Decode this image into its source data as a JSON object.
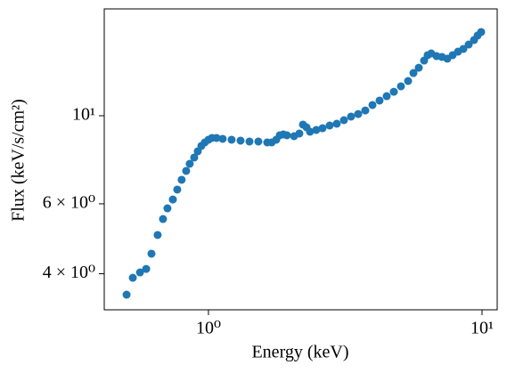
{
  "chart_data": {
    "type": "scatter",
    "x_label": "Energy (keV)",
    "y_label": "Flux (keV/s/cm²)",
    "x_scale": "log",
    "y_scale": "log",
    "color": "#1f77b4",
    "xlim": [
      0.416,
      11.36
    ],
    "ylim": [
      3.245,
      18.58
    ],
    "xticks": [
      {
        "value": 1,
        "label": "10⁰"
      },
      {
        "value": 10,
        "label": "10¹"
      }
    ],
    "yticks": [
      {
        "value": 4,
        "label": "4 × 10⁰"
      },
      {
        "value": 6,
        "label": "6 × 10⁰"
      },
      {
        "value": 10,
        "label": "10¹"
      }
    ],
    "x": [
      0.502,
      0.529,
      0.562,
      0.592,
      0.619,
      0.652,
      0.682,
      0.708,
      0.741,
      0.769,
      0.798,
      0.829,
      0.854,
      0.887,
      0.914,
      0.942,
      0.97,
      1.0,
      1.03,
      1.07,
      1.127,
      1.215,
      1.31,
      1.412,
      1.522,
      1.64,
      1.703,
      1.769,
      1.822,
      1.878,
      1.935,
      2.055,
      2.149,
      2.215,
      2.282,
      2.351,
      2.478,
      2.612,
      2.773,
      2.944,
      3.127,
      3.32,
      3.526,
      3.744,
      3.976,
      4.221,
      4.482,
      4.759,
      5.053,
      5.366,
      5.613,
      5.871,
      6.141,
      6.328,
      6.52,
      6.82,
      7.135,
      7.464,
      7.807,
      8.167,
      8.543,
      8.937,
      9.348,
      9.632,
      9.925
    ],
    "values": [
      3.542,
      3.907,
      4.03,
      4.113,
      4.493,
      5.007,
      5.494,
      5.844,
      6.153,
      6.515,
      6.897,
      7.261,
      7.567,
      7.847,
      8.136,
      8.392,
      8.565,
      8.7,
      8.79,
      8.79,
      8.745,
      8.7,
      8.656,
      8.61,
      8.61,
      8.565,
      8.565,
      8.7,
      8.927,
      8.974,
      8.927,
      8.88,
      9.02,
      9.497,
      9.351,
      9.114,
      9.209,
      9.302,
      9.448,
      9.546,
      9.745,
      9.95,
      10.1,
      10.31,
      10.64,
      10.92,
      11.2,
      11.49,
      11.86,
      12.23,
      12.81,
      13.21,
      13.77,
      14.21,
      14.35,
      14.13,
      14.06,
      13.92,
      14.21,
      14.5,
      14.73,
      15.11,
      15.51,
      15.92,
      16.25
    ]
  }
}
